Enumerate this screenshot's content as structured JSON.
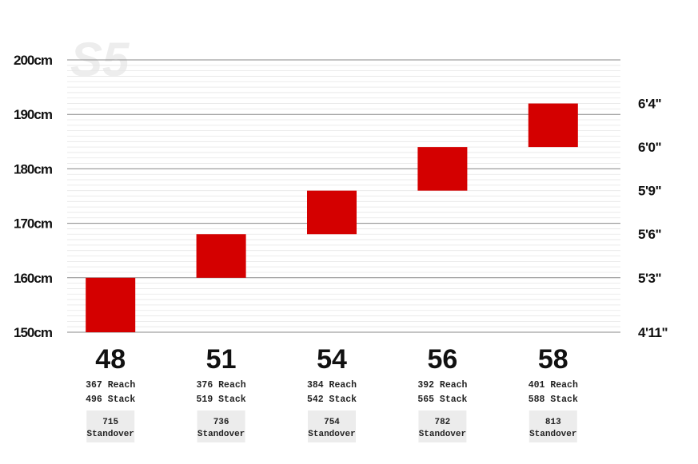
{
  "watermark": "S5",
  "chart_data": {
    "type": "bar",
    "title": "",
    "y_axis_left": {
      "ticks": [
        150,
        160,
        170,
        180,
        190,
        200
      ],
      "labels": [
        "150cm",
        "160cm",
        "170cm",
        "180cm",
        "190cm",
        "200cm"
      ],
      "ylim": [
        150,
        200
      ]
    },
    "y_axis_right": {
      "labels": [
        "4'11\"",
        "5'3\"",
        "5'6\"",
        "5'9\"",
        "6'0\"",
        "6'4\""
      ],
      "cm_values": [
        150,
        160,
        168,
        176,
        184,
        192
      ]
    },
    "categories": [
      "48",
      "51",
      "54",
      "56",
      "58"
    ],
    "ranges": [
      {
        "size": "48",
        "low": 150,
        "high": 160
      },
      {
        "size": "51",
        "low": 160,
        "high": 168
      },
      {
        "size": "54",
        "low": 168,
        "high": 176
      },
      {
        "size": "56",
        "low": 176,
        "high": 184
      },
      {
        "size": "58",
        "low": 184,
        "high": 192
      }
    ],
    "bar_color": "#d40000",
    "grid": true
  },
  "geometry": [
    {
      "size": "48",
      "reach": "367 Reach",
      "stack": "496 Stack",
      "standover_value": "715",
      "standover_label": "Standover"
    },
    {
      "size": "51",
      "reach": "376 Reach",
      "stack": "519 Stack",
      "standover_value": "736",
      "standover_label": "Standover"
    },
    {
      "size": "54",
      "reach": "384 Reach",
      "stack": "542 Stack",
      "standover_value": "754",
      "standover_label": "Standover"
    },
    {
      "size": "56",
      "reach": "392 Reach",
      "stack": "565 Stack",
      "standover_value": "782",
      "standover_label": "Standover"
    },
    {
      "size": "58",
      "reach": "401 Reach",
      "stack": "588 Stack",
      "standover_value": "813",
      "standover_label": "Standover"
    }
  ]
}
